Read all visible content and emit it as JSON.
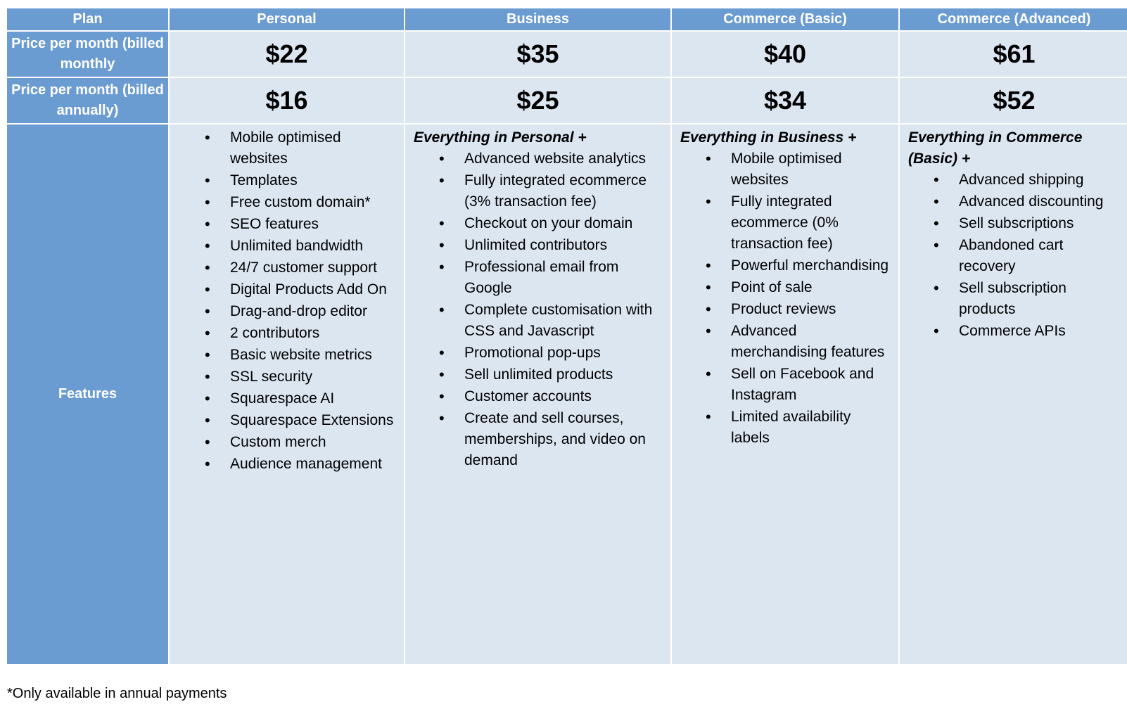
{
  "header": {
    "plan_label": "Plan",
    "plans": [
      "Personal",
      "Business",
      "Commerce (Basic)",
      "Commerce (Advanced)"
    ]
  },
  "rows": {
    "monthly_label": "Price per month (billed monthly",
    "annual_label": "Price per month (billed annually)",
    "features_label": "Features"
  },
  "prices_monthly": [
    "$22",
    "$35",
    "$40",
    "$61"
  ],
  "prices_annual": [
    "$16",
    "$25",
    "$34",
    "$52"
  ],
  "features": {
    "personal": {
      "intro": "",
      "items": [
        "Mobile optimised websites",
        "Templates",
        "Free custom domain*",
        "SEO features",
        "Unlimited bandwidth",
        "24/7 customer support",
        "Digital Products Add On",
        "Drag-and-drop editor",
        "2 contributors",
        "Basic website metrics",
        "SSL security",
        "Squarespace AI",
        "Squarespace Extensions",
        "Custom merch",
        "Audience management"
      ]
    },
    "business": {
      "intro": "Everything in Personal +",
      "items": [
        "Advanced website analytics",
        "Fully integrated ecommerce (3% transaction fee)",
        "Checkout on your domain",
        "Unlimited contributors",
        "Professional email from Google",
        "Complete customisation with CSS and Javascript",
        "Promotional pop-ups",
        "Sell unlimited products",
        "Customer accounts",
        "Create and sell courses, memberships, and video on demand"
      ]
    },
    "commerce_basic": {
      "intro": "Everything in Business +",
      "items": [
        "Mobile optimised websites",
        "Fully integrated ecommerce (0% transaction fee)",
        "Powerful merchandising",
        "Point of sale",
        "Product reviews",
        "Advanced merchandising features",
        "Sell on Facebook and Instagram",
        "Limited availability labels"
      ]
    },
    "commerce_advanced": {
      "intro": "Everything in Commerce (Basic) +",
      "items": [
        "Advanced shipping",
        "Advanced discounting",
        "Sell subscriptions",
        "Abandoned cart recovery",
        "Sell subscription products",
        "Commerce APIs"
      ]
    }
  },
  "footnote": "*Only available in annual payments",
  "colors": {
    "header_blue": "#6a9bd1",
    "cell_light_blue": "#dce6f1"
  }
}
